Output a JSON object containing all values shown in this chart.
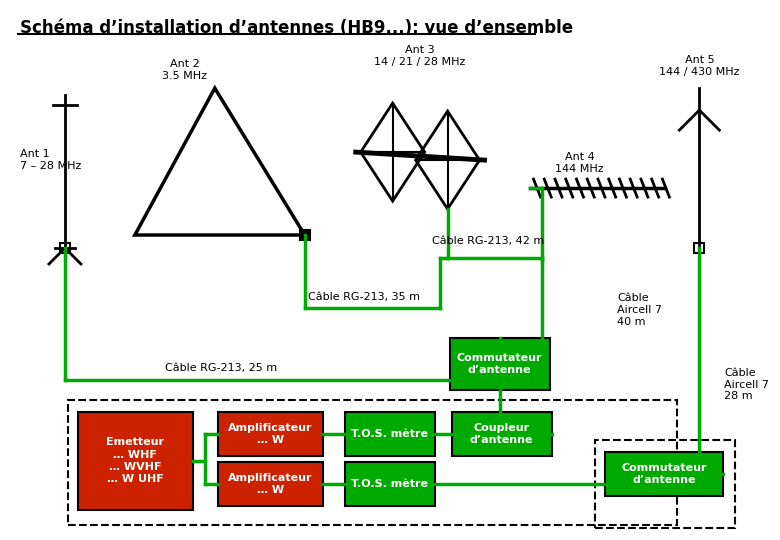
{
  "title": "Schéma d’installation d’antennes (HB9...): vue d’ensemble",
  "bg_color": "#ffffff",
  "line_color": "#00aa00",
  "black": "#000000",
  "green_box": "#00aa00",
  "red_box": "#cc2200",
  "ant1_label": "Ant 1\n7 – 28 MHz",
  "ant2_label": "Ant 2\n3.5 MHz",
  "ant3_label": "Ant 3\n14 / 21 / 28 MHz",
  "ant4_label": "Ant 4\n144 MHz",
  "ant5_label": "Ant 5\n144 / 430 MHz",
  "cable1": "Câble RG‐213, 42 m",
  "cable2": "Câble RG‐213, 35 m",
  "cable3": "Câble RG‐213, 25 m",
  "cable4": "Câble\nAircell 7\n40 m",
  "cable5": "Câble\nAircell 7\n28 m",
  "commutateur1": "Commutateur\nd’antenne",
  "commutateur2": "Commutateur\nd’antenne",
  "coupleur": "Coupleur\nd’antenne",
  "emetteur": "Emetteur\n… WHF\n… WVHF\n… W UHF",
  "ampli1": "Amplificateur\n… W",
  "ampli2": "Amplificateur\n… W",
  "tos1": "T.O.S. mètre",
  "tos2": "T.O.S. mètre"
}
